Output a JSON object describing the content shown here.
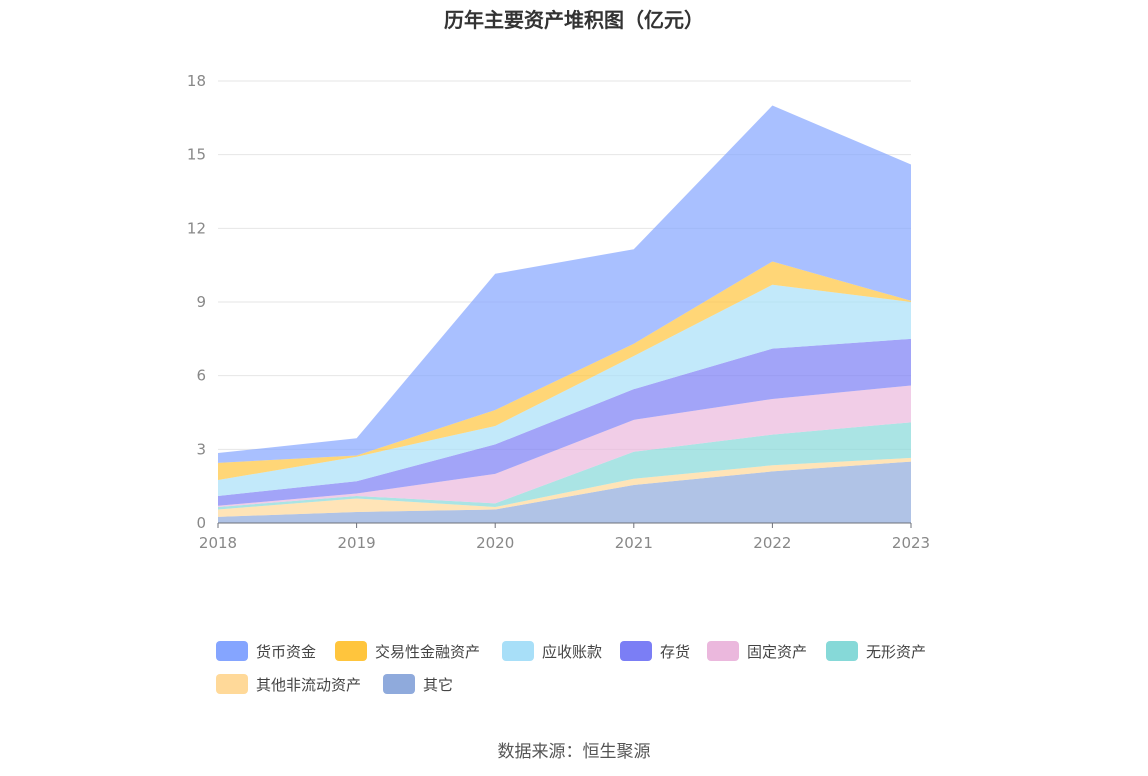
{
  "chart_data": {
    "type": "area",
    "stacked": true,
    "title": "历年主要资产堆积图（亿元）",
    "x": [
      "2018",
      "2019",
      "2020",
      "2021",
      "2022",
      "2023"
    ],
    "ylim": [
      0,
      18
    ],
    "yticks": [
      0,
      3,
      6,
      9,
      12,
      15,
      18
    ],
    "grid": true,
    "legend_position": "bottom",
    "series": [
      {
        "name": "其它",
        "color": "#8FAADC",
        "values": [
          0.25,
          0.45,
          0.55,
          1.55,
          2.1,
          2.5
        ]
      },
      {
        "name": "其他非流动资产",
        "color": "#FFD999",
        "values": [
          0.3,
          0.55,
          0.1,
          0.25,
          0.25,
          0.15
        ]
      },
      {
        "name": "无形资产",
        "color": "#86D9D8",
        "values": [
          0.1,
          0.1,
          0.15,
          1.1,
          1.25,
          1.45
        ]
      },
      {
        "name": "固定资产",
        "color": "#EBB8DD",
        "values": [
          0.05,
          0.1,
          1.2,
          1.3,
          1.45,
          1.5
        ]
      },
      {
        "name": "存货",
        "color": "#7B7EF5",
        "values": [
          0.4,
          0.5,
          1.2,
          1.25,
          2.05,
          1.9
        ]
      },
      {
        "name": "应收账款",
        "color": "#A8DFF8",
        "values": [
          0.65,
          1.0,
          0.75,
          1.35,
          2.6,
          1.5
        ]
      },
      {
        "name": "交易性金融资产",
        "color": "#FFC53D",
        "values": [
          0.7,
          0.05,
          0.65,
          0.5,
          0.95,
          0.05
        ]
      },
      {
        "name": "货币资金",
        "color": "#85A5FF",
        "values": [
          0.4,
          0.7,
          5.55,
          3.85,
          6.35,
          5.55
        ]
      }
    ]
  },
  "legend_order": [
    "货币资金",
    "交易性金融资产",
    "应收账款",
    "存货",
    "固定资产",
    "无形资产",
    "其他非流动资产",
    "其它"
  ],
  "source": "数据来源：恒生聚源"
}
